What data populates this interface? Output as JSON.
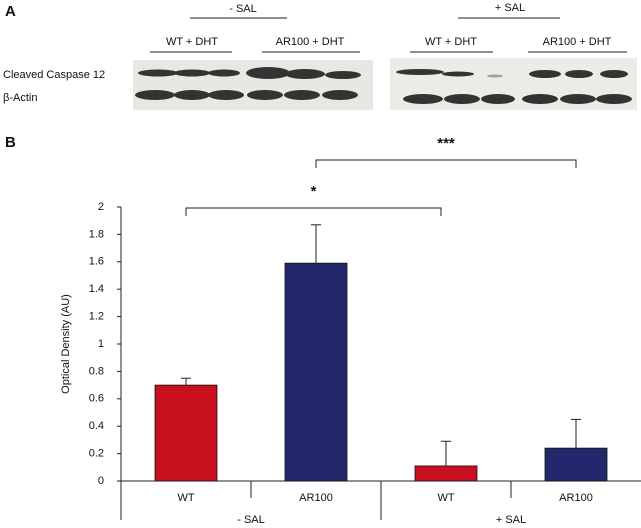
{
  "panel_labels": [
    "A",
    "B"
  ],
  "blot": {
    "row_labels": [
      "Cleaved Caspase 12",
      "β-Actin"
    ],
    "groups": [
      {
        "label": "- SAL",
        "lanes": [
          "WT + DHT",
          "AR100 + DHT"
        ]
      },
      {
        "label": "+ SAL",
        "lanes": [
          "WT + DHT",
          "AR100 + DHT"
        ]
      }
    ]
  },
  "chart_data": {
    "type": "bar",
    "ylabel": "Optical Density (AU)",
    "categories": [
      "WT",
      "AR100",
      "WT",
      "AR100"
    ],
    "groups": [
      "- SAL",
      "+ SAL"
    ],
    "values": [
      0.7,
      1.59,
      0.11,
      0.24
    ],
    "errors": [
      0.05,
      0.28,
      0.18,
      0.21
    ],
    "colors": [
      "#c8101e",
      "#22286b",
      "#c8101e",
      "#22286b"
    ],
    "ylim": [
      0,
      2
    ],
    "yticks": [
      0,
      0.2,
      0.4,
      0.6,
      0.8,
      1,
      1.2,
      1.4,
      1.6,
      1.8,
      2
    ],
    "annotations": [
      {
        "text": "*",
        "from": 0,
        "to": 2
      },
      {
        "text": "***",
        "from": 1,
        "to": 3
      }
    ]
  }
}
